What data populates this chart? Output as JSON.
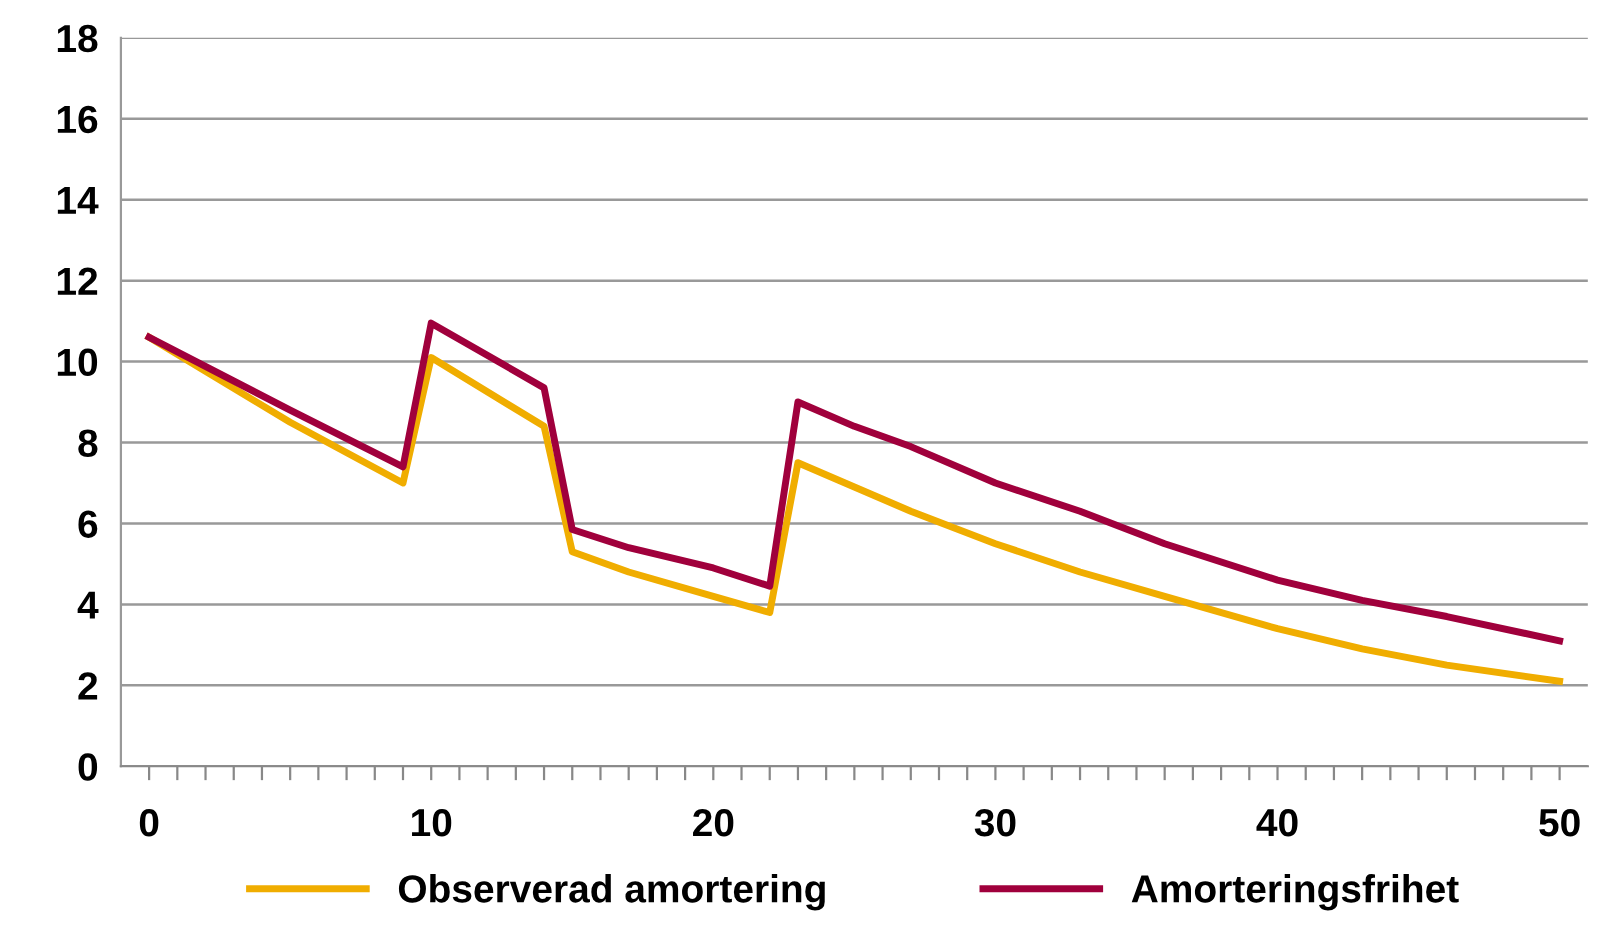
{
  "chart_data": {
    "type": "line",
    "x": [
      0,
      5,
      9,
      10,
      14,
      15,
      17,
      20,
      22,
      23,
      25,
      27,
      30,
      33,
      36,
      40,
      43,
      46,
      50
    ],
    "series": [
      {
        "name": "Observerad amortering",
        "color": "#f0ad00",
        "values": [
          10.6,
          8.5,
          7.0,
          10.1,
          8.4,
          5.3,
          4.8,
          4.2,
          3.8,
          7.5,
          6.9,
          6.3,
          5.5,
          4.8,
          4.2,
          3.4,
          2.9,
          2.5,
          2.1
        ]
      },
      {
        "name": "Amorteringsfrihet",
        "color": "#a0003c",
        "values": [
          10.6,
          8.8,
          7.4,
          10.95,
          9.35,
          5.85,
          5.4,
          4.9,
          4.45,
          9.0,
          8.4,
          7.9,
          7.0,
          6.3,
          5.5,
          4.6,
          4.1,
          3.7,
          3.1
        ]
      }
    ],
    "xlim": [
      -1,
      51
    ],
    "xticks": [
      0,
      {
        "value": 1,
        "label": null
      },
      {
        "value": 2,
        "label": null
      },
      {
        "value": 3,
        "label": null
      },
      {
        "value": 4,
        "label": null
      },
      {
        "value": 5,
        "label": null
      },
      {
        "value": 6,
        "label": null
      },
      {
        "value": 7,
        "label": null
      },
      {
        "value": 8,
        "label": null
      },
      {
        "value": 9,
        "label": null
      },
      10,
      {
        "value": 11,
        "label": null
      },
      {
        "value": 12,
        "label": null
      },
      {
        "value": 13,
        "label": null
      },
      {
        "value": 14,
        "label": null
      },
      {
        "value": 15,
        "label": null
      },
      {
        "value": 16,
        "label": null
      },
      {
        "value": 17,
        "label": null
      },
      {
        "value": 18,
        "label": null
      },
      {
        "value": 19,
        "label": null
      },
      20,
      {
        "value": 21,
        "label": null
      },
      {
        "value": 22,
        "label": null
      },
      {
        "value": 23,
        "label": null
      },
      {
        "value": 24,
        "label": null
      },
      {
        "value": 25,
        "label": null
      },
      {
        "value": 26,
        "label": null
      },
      {
        "value": 27,
        "label": null
      },
      {
        "value": 28,
        "label": null
      },
      {
        "value": 29,
        "label": null
      },
      30,
      {
        "value": 31,
        "label": null
      },
      {
        "value": 32,
        "label": null
      },
      {
        "value": 33,
        "label": null
      },
      {
        "value": 34,
        "label": null
      },
      {
        "value": 35,
        "label": null
      },
      {
        "value": 36,
        "label": null
      },
      {
        "value": 37,
        "label": null
      },
      {
        "value": 38,
        "label": null
      },
      {
        "value": 39,
        "label": null
      },
      40,
      {
        "value": 41,
        "label": null
      },
      {
        "value": 42,
        "label": null
      },
      {
        "value": 43,
        "label": null
      },
      {
        "value": 44,
        "label": null
      },
      {
        "value": 45,
        "label": null
      },
      {
        "value": 46,
        "label": null
      },
      {
        "value": 47,
        "label": null
      },
      {
        "value": 48,
        "label": null
      },
      {
        "value": 49,
        "label": null
      },
      50
    ],
    "ylim": [
      0,
      18
    ],
    "yticks": [
      0,
      2,
      4,
      6,
      8,
      10,
      12,
      14,
      16,
      18
    ],
    "grid": "y",
    "legend": "bottom",
    "marker": "none",
    "line_style": "solid"
  }
}
